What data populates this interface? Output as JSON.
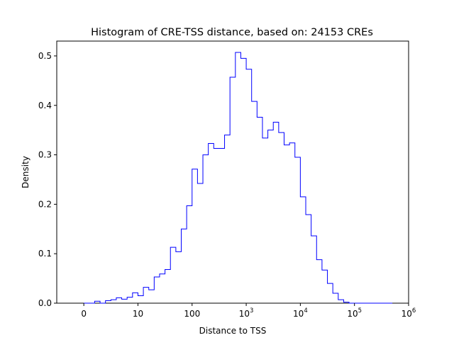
{
  "chart_data": {
    "type": "histogram",
    "title": "Histogram of CRE-TSS distance, based on: 24153 CREs",
    "xlabel": "Distance to TSS",
    "ylabel": "Density",
    "x_scale": "symlog",
    "xlim": [
      -0.5,
      6.0
    ],
    "ylim": [
      0,
      0.53
    ],
    "grid": false,
    "line_color": "#0000ff",
    "x_ticks": [
      {
        "value": 0,
        "label": "0"
      },
      {
        "value": 1,
        "label": "10"
      },
      {
        "value": 2,
        "label": "100"
      },
      {
        "value": 3,
        "label": "10",
        "exp": "3"
      },
      {
        "value": 4,
        "label": "10",
        "exp": "4"
      },
      {
        "value": 5,
        "label": "10",
        "exp": "5"
      },
      {
        "value": 6,
        "label": "10",
        "exp": "6"
      }
    ],
    "y_ticks": [
      {
        "value": 0.0,
        "label": "0.0"
      },
      {
        "value": 0.1,
        "label": "0.1"
      },
      {
        "value": 0.2,
        "label": "0.2"
      },
      {
        "value": 0.3,
        "label": "0.3"
      },
      {
        "value": 0.4,
        "label": "0.4"
      },
      {
        "value": 0.5,
        "label": "0.5"
      }
    ],
    "bin_edges": [
      0.0,
      0.1,
      0.2,
      0.3,
      0.4,
      0.5,
      0.6,
      0.7,
      0.8,
      0.9,
      1.0,
      1.1,
      1.2,
      1.3,
      1.4,
      1.5,
      1.6,
      1.7,
      1.8,
      1.9,
      2.0,
      2.1,
      2.2,
      2.3,
      2.4,
      2.5,
      2.6,
      2.7,
      2.8,
      2.9,
      3.0,
      3.1,
      3.2,
      3.3,
      3.4,
      3.5,
      3.6,
      3.7,
      3.8,
      3.9,
      4.0,
      4.1,
      4.2,
      4.3,
      4.4,
      4.5,
      4.6,
      4.7,
      4.8,
      4.9,
      5.0,
      5.1,
      5.2,
      5.3,
      5.4,
      5.5,
      5.6,
      5.7
    ],
    "values": [
      0.0,
      0.0,
      0.004,
      0.0,
      0.005,
      0.007,
      0.011,
      0.008,
      0.012,
      0.021,
      0.015,
      0.032,
      0.027,
      0.053,
      0.059,
      0.068,
      0.113,
      0.104,
      0.15,
      0.197,
      0.271,
      0.242,
      0.3,
      0.323,
      0.313,
      0.313,
      0.34,
      0.457,
      0.507,
      0.495,
      0.473,
      0.408,
      0.376,
      0.334,
      0.35,
      0.366,
      0.345,
      0.32,
      0.324,
      0.295,
      0.215,
      0.179,
      0.136,
      0.088,
      0.067,
      0.04,
      0.02,
      0.007,
      0.002,
      0.0,
      0.0,
      0.0,
      0.0,
      0.0,
      0.0,
      0.0,
      0.0
    ]
  }
}
